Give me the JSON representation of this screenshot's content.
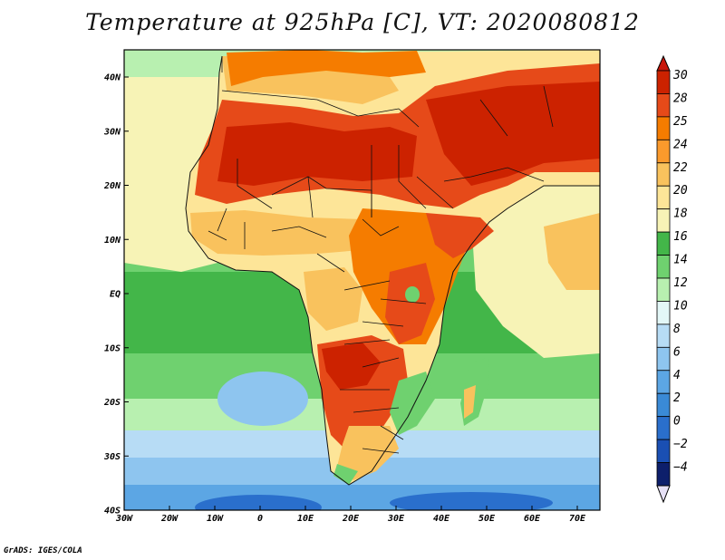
{
  "title": "Temperature at 925hPa [C], VT: 2020080812",
  "credit": "GrADS: IGES/COLA",
  "lat_labels": [
    "40N",
    "30N",
    "20N",
    "10N",
    "EQ",
    "10S",
    "20S",
    "30S",
    "40S"
  ],
  "lon_labels": [
    "30W",
    "20W",
    "10W",
    "0",
    "10E",
    "20E",
    "30E",
    "40E",
    "50E",
    "60E",
    "70E"
  ],
  "colorbar": {
    "labels": [
      "30",
      "28",
      "25",
      "24",
      "22",
      "20",
      "18",
      "16",
      "14",
      "12",
      "10",
      "8",
      "6",
      "4",
      "2",
      "0",
      "-2",
      "-4"
    ],
    "colors": [
      "#cc2200",
      "#e64a19",
      "#f57c00",
      "#fb9a2c",
      "#f9c25d",
      "#fde598",
      "#f7f3b6",
      "#43b649",
      "#6fd16f",
      "#b8f0b0",
      "#e3f7f7",
      "#b7dcf5",
      "#8ec5ef",
      "#5ca6e4",
      "#3a8ad6",
      "#2a6fcc",
      "#1a4fb3",
      "#0d1f6b"
    ],
    "over_color": "#c8160a",
    "under_color": "#e6e0f5"
  },
  "map": {
    "extent_lon": [
      -30,
      75
    ],
    "extent_lat": [
      -40,
      45
    ],
    "palette": {
      "ocean_south_deep": "#2a6fcc",
      "ocean_south": "#5ca6e4",
      "ocean_mid": "#8ec5ef",
      "ocean_light": "#b7dcf5",
      "ocean_green_light": "#b8f0b0",
      "ocean_green": "#6fd16f",
      "ocean_green_dark": "#43b649",
      "ocean_warm": "#f7f3b6",
      "land_hot": "#cc2200",
      "land_warm": "#e64a19",
      "land_mid": "#f57c00",
      "land_cool": "#fb9a2c",
      "land_mild": "#f9c25d",
      "land_pale": "#fde598"
    }
  }
}
